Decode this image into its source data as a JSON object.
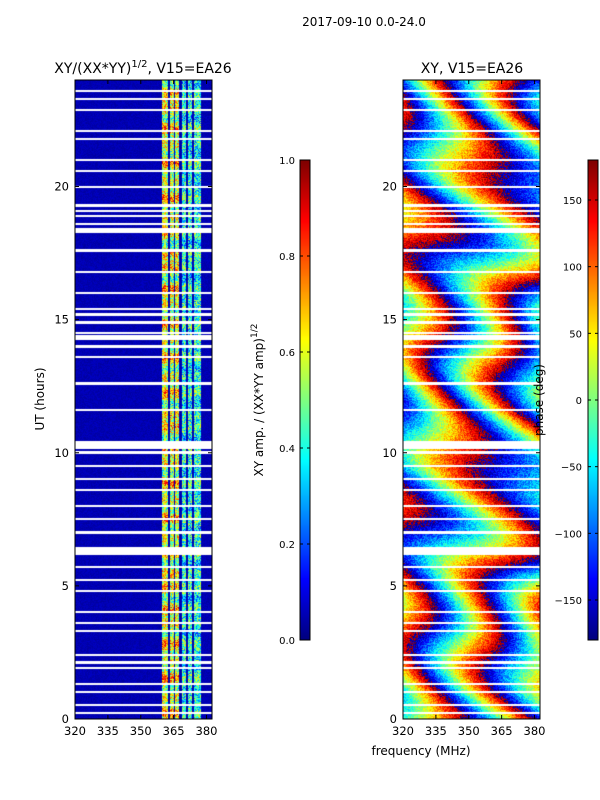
{
  "figure": {
    "suptitle": "2017-09-10 0.0-24.0",
    "xlabel": "frequency (MHz)"
  },
  "chart_data": [
    {
      "type": "heatmap",
      "title_main": "XY/(XX*YY)",
      "title_sup": "1/2",
      "title_rest": ", V15=EA26",
      "ylabel": "UT (hours)",
      "xlim": [
        320,
        382.5
      ],
      "ylim": [
        0,
        24
      ],
      "xticks": [
        320,
        335,
        350,
        365,
        380
      ],
      "yticks": [
        0,
        5,
        10,
        15,
        20
      ],
      "colormap": "jet",
      "colorbar": {
        "label_main": "XY amp. / (XX*YY amp)",
        "label_sup": "1/2",
        "range": [
          0.0,
          1.0
        ],
        "ticks": [
          "0.0",
          "0.2",
          "0.4",
          "0.6",
          "0.8",
          "1.0"
        ],
        "tick_values": [
          0.0,
          0.2,
          0.4,
          0.6,
          0.8,
          1.0
        ]
      },
      "description": "amplitude near 0 everywhere except bright channels around 360-375 MHz",
      "bright_channels_mhz": [
        360.5,
        361.5,
        364.5,
        366.5,
        370,
        372.5,
        375.5,
        377
      ]
    },
    {
      "type": "heatmap",
      "title": "XY, V15=EA26",
      "xlim": [
        320,
        382.5
      ],
      "ylim": [
        0,
        24
      ],
      "xticks": [
        320,
        335,
        350,
        365,
        380
      ],
      "yticks": [
        0,
        5,
        10,
        15,
        20
      ],
      "colormap": "jet",
      "colorbar": {
        "label": "phase (deg)",
        "range": [
          -180,
          180
        ],
        "ticks": [
          "−150",
          "−100",
          "−50",
          "0",
          "50",
          "100",
          "150"
        ],
        "tick_values": [
          -150,
          -100,
          -50,
          0,
          50,
          100,
          150
        ]
      },
      "description": "phase in degrees, wrapping fringes varying with frequency and time"
    }
  ],
  "flagged_ut_hours": [
    0.2,
    0.5,
    1.0,
    1.3,
    1.9,
    2.1,
    2.4,
    3.3,
    3.6,
    4.0,
    4.8,
    5.2,
    5.7,
    6.2,
    6.3,
    6.4,
    7.0,
    7.5,
    8.0,
    8.6,
    9.0,
    9.5,
    10.0,
    10.2,
    10.3,
    10.4,
    11.6,
    12.6,
    13.6,
    14.0,
    14.3,
    14.4,
    14.5,
    14.9,
    15.2,
    15.4,
    16.0,
    16.8,
    17.6,
    18.3,
    18.4,
    18.6,
    18.9,
    19.1,
    19.3,
    20.0,
    20.6,
    21.0,
    21.8,
    22.1,
    22.9,
    23.3,
    23.6
  ],
  "colors": {
    "background": "#ffffff",
    "frame": "#000000"
  }
}
